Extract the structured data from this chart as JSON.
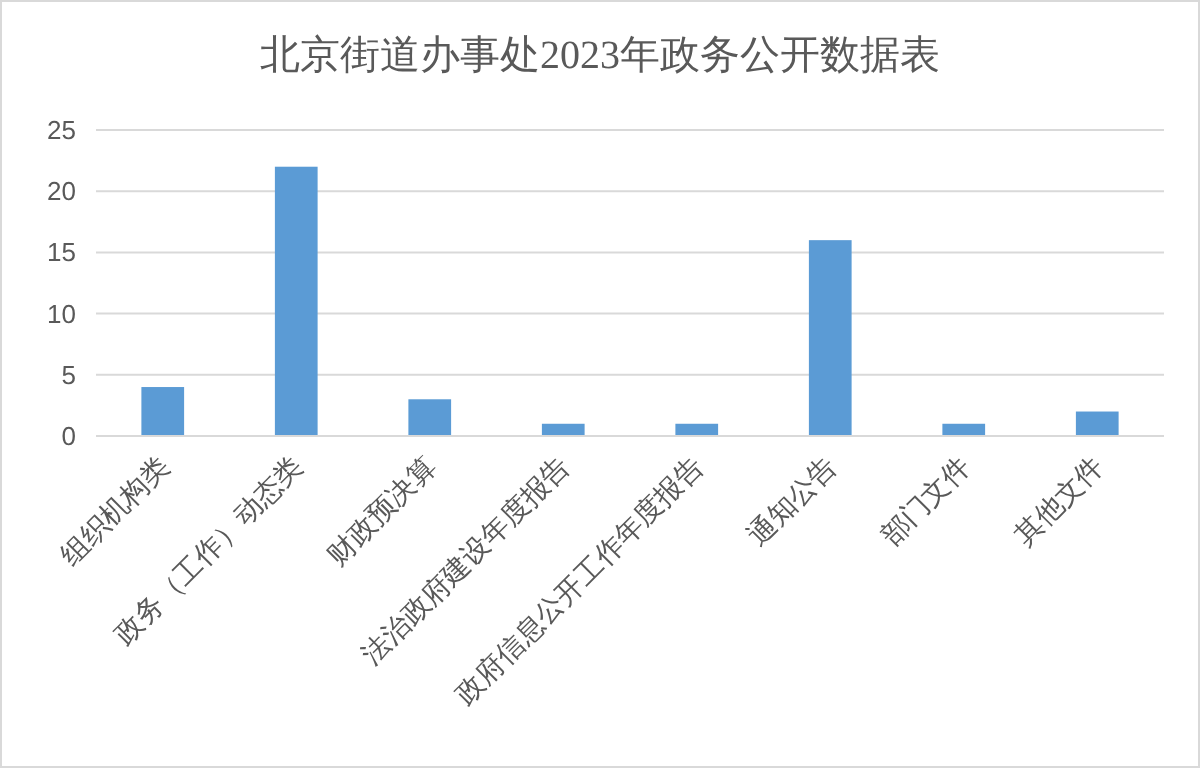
{
  "chart_data": {
    "type": "bar",
    "title": "北京街道办事处2023年政务公开数据表",
    "categories": [
      "组织机构类",
      "政务（工作）动态类",
      "财政预决算",
      "法治政府建设年度报告",
      "政府信息公开工作年度报告",
      "通知公告",
      "部门文件",
      "其他文件"
    ],
    "values": [
      4,
      22,
      3,
      1,
      1,
      16,
      1,
      2
    ],
    "color": "#5b9bd5",
    "ylim": [
      0,
      25
    ],
    "yticks": [
      0,
      5,
      10,
      15,
      20,
      25
    ],
    "grid": "y"
  }
}
